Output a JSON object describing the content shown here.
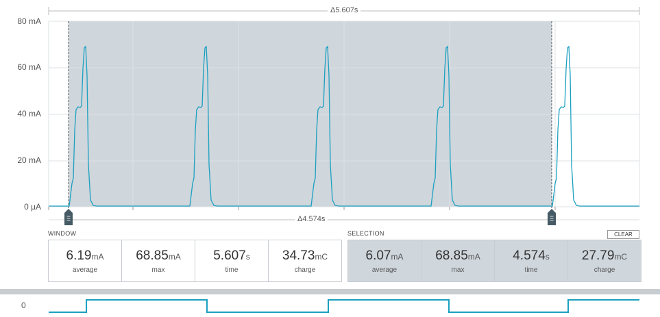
{
  "chart": {
    "y_ticks": [
      "80 mA",
      "60 mA",
      "40 mA",
      "20 mA",
      "0 µA"
    ],
    "window_delta": "Δ5.607s",
    "selection_delta": "Δ4.574s",
    "trace_color": "#1aa0c0",
    "selection_color": "#cfd6dc"
  },
  "window": {
    "header": "WINDOW",
    "stats": [
      {
        "value": "6.19",
        "unit": "mA",
        "label": "average"
      },
      {
        "value": "68.85",
        "unit": "mA",
        "label": "max"
      },
      {
        "value": "5.607",
        "unit": "s",
        "label": "time"
      },
      {
        "value": "34.73",
        "unit": "mC",
        "label": "charge"
      }
    ]
  },
  "selection": {
    "header": "SELECTION",
    "clear_label": "CLEAR",
    "stats": [
      {
        "value": "6.07",
        "unit": "mA",
        "label": "average"
      },
      {
        "value": "68.85",
        "unit": "mA",
        "label": "max"
      },
      {
        "value": "4.574",
        "unit": "s",
        "label": "time"
      },
      {
        "value": "27.79",
        "unit": "mC",
        "label": "charge"
      }
    ]
  },
  "digital": {
    "channel_label": "0"
  }
}
